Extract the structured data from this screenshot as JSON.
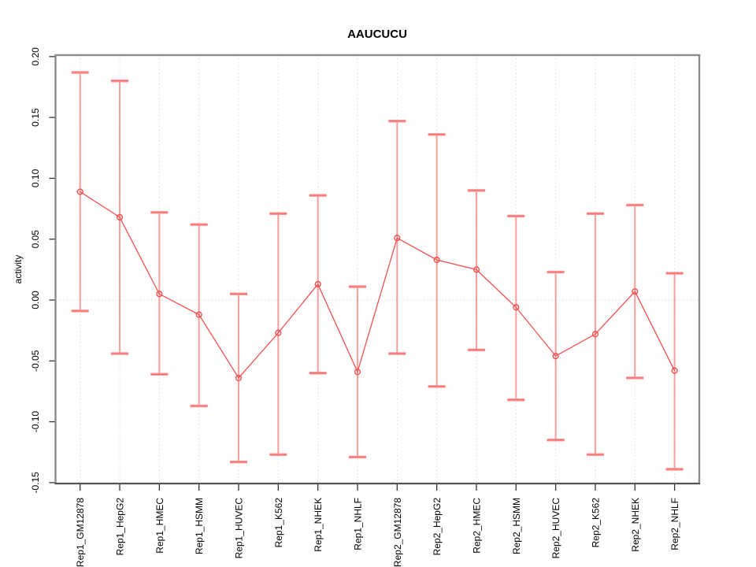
{
  "window": {
    "kind": "r-graphics-plot",
    "background": "#ffffff"
  },
  "chart_data": {
    "type": "line",
    "title": "AAUCUCU",
    "xlabel": "",
    "ylabel": "activity",
    "categories": [
      "Rep1_GM12878",
      "Rep1_HepG2",
      "Rep1_HMEC",
      "Rep1_HSMM",
      "Rep1_HUVEC",
      "Rep1_K562",
      "Rep1_NHEK",
      "Rep1_NHLF",
      "Rep2_GM12878",
      "Rep2_HepG2",
      "Rep2_HMEC",
      "Rep2_HSMM",
      "Rep2_HUVEC",
      "Rep2_K562",
      "Rep2_NHEK",
      "Rep2_NHLF"
    ],
    "series": [
      {
        "name": "activity",
        "values": [
          0.089,
          0.068,
          0.005,
          -0.012,
          -0.064,
          -0.027,
          0.013,
          -0.059,
          0.051,
          0.033,
          0.025,
          -0.006,
          -0.046,
          -0.028,
          0.007,
          -0.058
        ],
        "error_upper": [
          0.187,
          0.18,
          0.072,
          0.062,
          0.005,
          0.071,
          0.086,
          0.011,
          0.147,
          0.136,
          0.09,
          0.069,
          0.023,
          0.071,
          0.078,
          0.022
        ],
        "error_lower": [
          -0.009,
          -0.044,
          -0.061,
          -0.087,
          -0.133,
          -0.127,
          -0.06,
          -0.129,
          -0.044,
          -0.071,
          -0.041,
          -0.082,
          -0.115,
          -0.127,
          -0.064,
          -0.139
        ]
      }
    ],
    "yticks": [
      0.2,
      0.15,
      0.1,
      0.05,
      0.0,
      -0.05,
      -0.1,
      -0.15
    ],
    "ylim": [
      -0.151,
      0.201
    ],
    "grid": "vertical-dotted",
    "zero_line": true,
    "legend_position": "none",
    "marker": "open-circle",
    "colors": {
      "series_line": "#f25050",
      "point_stroke": "#f25050",
      "error_stem": "#ff52528c",
      "error_cap": "#ff9a9a",
      "error_cap_core": "#f56c6c",
      "grid": "#dcdcdc",
      "zero_line": "#dcdcdc",
      "frame": "#8c8c8c",
      "axis_tick": "#333333",
      "text": "#000000",
      "background": "#ffffff"
    }
  }
}
